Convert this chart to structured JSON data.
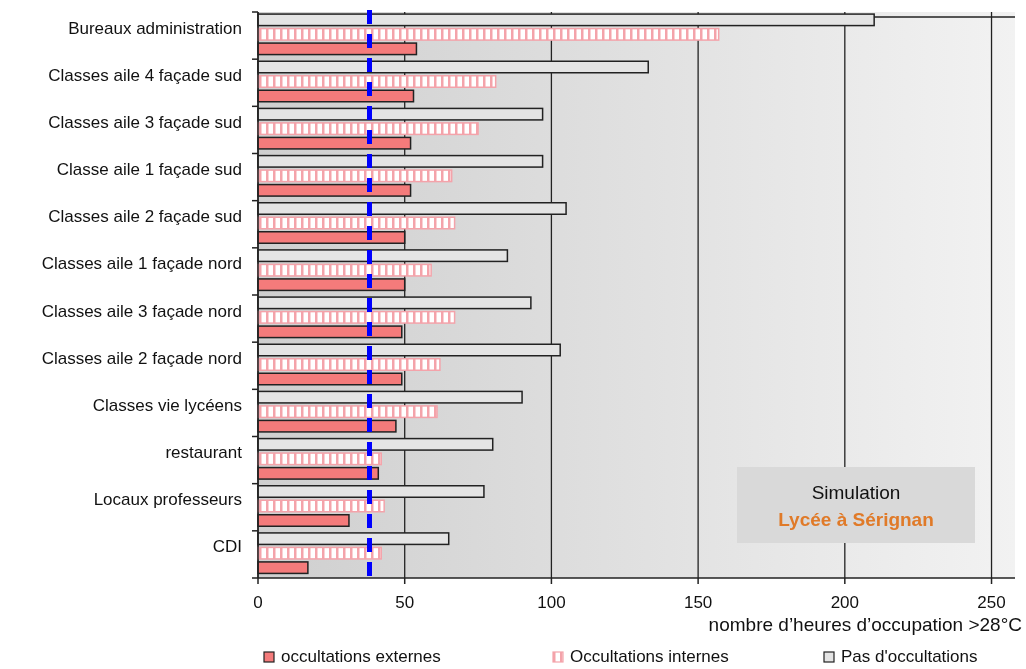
{
  "chart_data": {
    "type": "bar",
    "orientation": "horizontal",
    "categories": [
      "Bureaux administration",
      "Classes aile 4 façade sud",
      "Classes aile 3 façade sud",
      "Classe aile 1 façade sud",
      "Classes aile 2 façade sud",
      "Classes aile 1 façade nord",
      "Classes aile 3 façade nord",
      "Classes aile 2 façade nord",
      "Classes vie lycéens",
      "restaurant",
      "Locaux professeurs",
      "CDI"
    ],
    "series": [
      {
        "name": "occultations externes",
        "color": "#f47b7b",
        "values": [
          54,
          53,
          52,
          52,
          50,
          50,
          49,
          49,
          47,
          41,
          31,
          17
        ]
      },
      {
        "name": "Occultations internes",
        "color": "#f4a3aa",
        "values": [
          157,
          81,
          75,
          66,
          67,
          59,
          67,
          62,
          61,
          42,
          43,
          42
        ]
      },
      {
        "name": "Pas d'occultations",
        "color": "#e4e4e4",
        "values": [
          210,
          133,
          97,
          97,
          105,
          85,
          93,
          103,
          90,
          80,
          77,
          65
        ]
      }
    ],
    "xlim": [
      0,
      258
    ],
    "xticks": [
      0,
      50,
      100,
      150,
      200,
      250
    ],
    "xlabel": "nombre d’heures d’occupation >28°C",
    "grid": "x",
    "legend": "bottom",
    "ref_lines": [
      {
        "axis": "x",
        "value": 38,
        "color": "#0000ff",
        "line_style": "dashed"
      }
    ],
    "annotations": [
      "Simulation",
      "Lycée à Sérignan"
    ]
  }
}
